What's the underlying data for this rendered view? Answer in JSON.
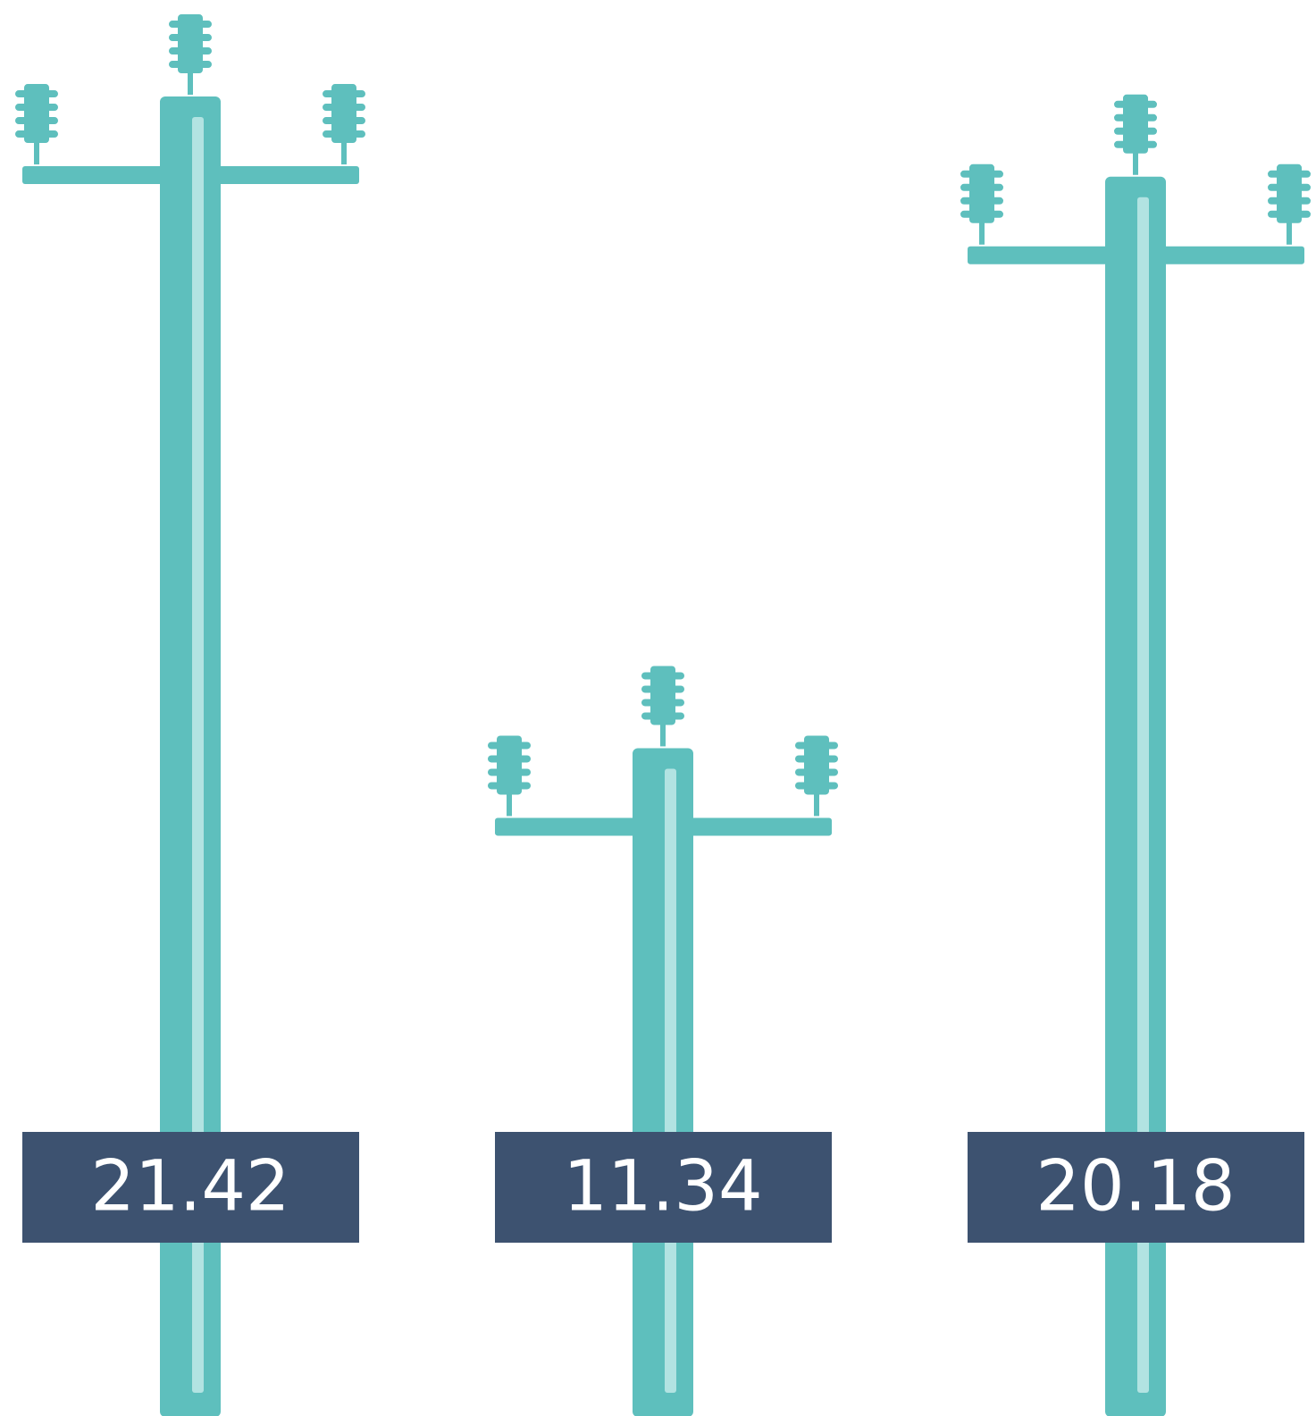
{
  "chart_data": {
    "type": "pictograph",
    "values": [
      21.42,
      11.34,
      20.18
    ],
    "color": "#5ebfbd",
    "label_color": "#3d5270"
  }
}
